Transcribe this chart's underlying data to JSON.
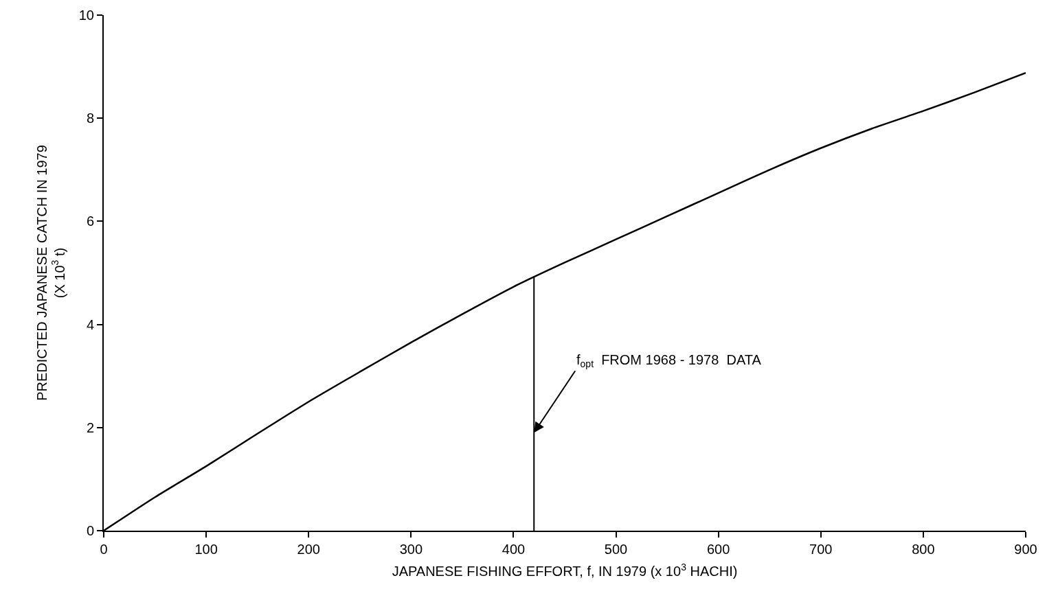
{
  "chart_data": {
    "type": "line",
    "xlabel": "JAPANESE FISHING EFFORT, f, IN 1979 (x 10$^{3}$ HACHI)",
    "ylabel": "PREDICTED JAPANESE CATCH IN 1979\n(X 10$^{3}$ t)",
    "x": [
      0,
      50,
      100,
      150,
      200,
      250,
      300,
      350,
      400,
      450,
      500,
      550,
      600,
      650,
      700,
      750,
      800,
      850,
      900
    ],
    "series": [
      {
        "color": "#000000",
        "values": [
          0,
          0.65,
          1.25,
          1.88,
          2.5,
          3.08,
          3.65,
          4.2,
          4.73,
          5.2,
          5.65,
          6.1,
          6.55,
          7.0,
          7.42,
          7.8,
          8.14,
          8.5,
          8.88
        ]
      }
    ],
    "xlim": [
      0,
      900
    ],
    "xticks": [
      0,
      100,
      200,
      300,
      400,
      500,
      600,
      700,
      800,
      900
    ],
    "ylim": [
      0,
      10
    ],
    "yticks": [
      0,
      2,
      4,
      6,
      8,
      10
    ],
    "ref_lines": [
      {
        "axis": "x",
        "value": 420,
        "color": "#000000"
      }
    ],
    "annotations": [
      {
        "text": "f$_{opt}$  FROM 1968 - 1978  DATA",
        "x": 420,
        "y": 1.9
      }
    ],
    "marker": "none",
    "line_style": "solid"
  }
}
